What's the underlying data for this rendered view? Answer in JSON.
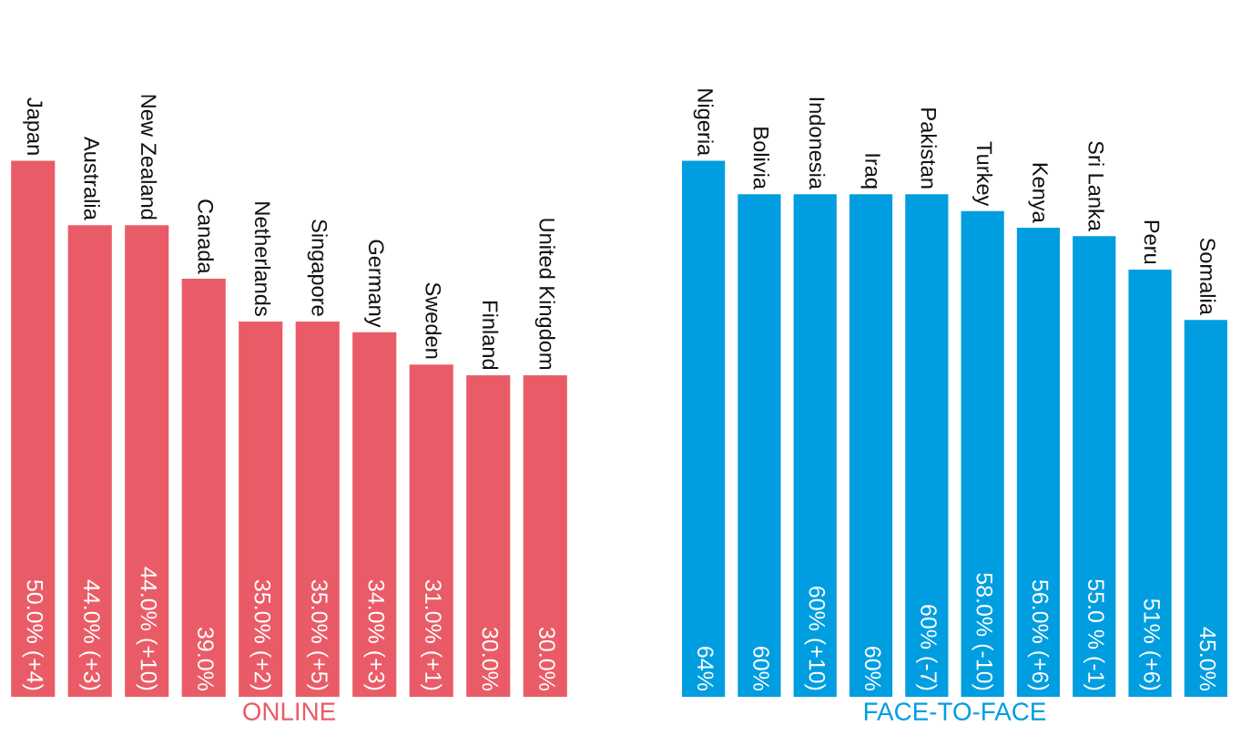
{
  "chart_data": [
    {
      "type": "bar",
      "xlabel": "ONLINE",
      "categories": [
        "Japan",
        "Australia",
        "New Zealand",
        "Canada",
        "Netherlands",
        "Singapore",
        "Germany",
        "Sweden",
        "Finland",
        "United Kingdom"
      ],
      "values": [
        50,
        44,
        44,
        39,
        35,
        35,
        34,
        31,
        30,
        30
      ],
      "value_labels": [
        "50.0% (+4)",
        "44.0% (+3)",
        "44.0% (+10)",
        "39.0%",
        "35.0% (+2)",
        "35.0% (+5)",
        "34.0% (+3)",
        "31.0% (+1)",
        "30.0%",
        "30.0%"
      ],
      "color": "#e95c67",
      "tick_labels": false
    },
    {
      "type": "bar",
      "xlabel": "FACE-TO-FACE",
      "categories": [
        "Nigeria",
        "Bolivia",
        "Indonesia",
        "Iraq",
        "Pakistan",
        "Turkey",
        "Kenya",
        "Sri Lanka",
        "Peru",
        "Somalia"
      ],
      "values": [
        64,
        60,
        60,
        60,
        60,
        58,
        56,
        55,
        51,
        45
      ],
      "value_labels": [
        "64%",
        "60%",
        "60% (+10)",
        "60%",
        "60% (-7)",
        "58.0% (-10)",
        "56.0% (+6)",
        "55.0 % (-1)",
        "51% (+6)",
        "45.0%"
      ],
      "color": "#009ee0",
      "tick_labels": false
    }
  ]
}
